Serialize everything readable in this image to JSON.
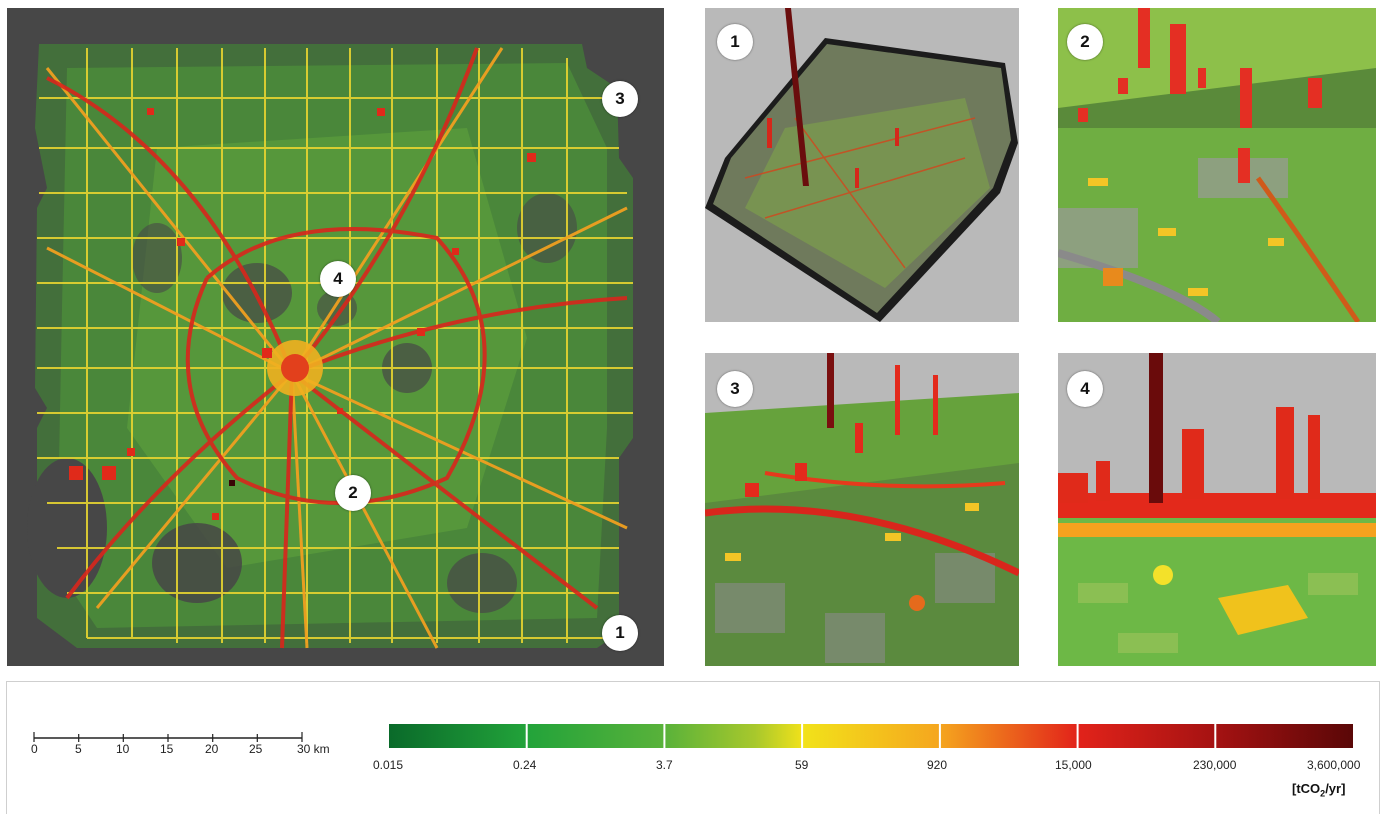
{
  "main_map": {
    "background": "#474747",
    "markers": [
      {
        "label": "3"
      },
      {
        "label": "4"
      },
      {
        "label": "2"
      },
      {
        "label": "1"
      }
    ]
  },
  "views": [
    {
      "marker": "1",
      "sky": "#b9b9b9"
    },
    {
      "marker": "2",
      "sky": "#c4c4c4"
    },
    {
      "marker": "3",
      "sky": "#b9b9b9"
    },
    {
      "marker": "4",
      "sky": "#b9b9b9"
    }
  ],
  "scale_bar": {
    "ticks": [
      "0",
      "5",
      "10",
      "15",
      "20",
      "25",
      "30 km"
    ]
  },
  "colorbar": {
    "labels": [
      "0.015",
      "0.24",
      "3.7",
      "59",
      "920",
      "15,000",
      "230,000",
      "3,600,000"
    ],
    "unit_prefix": "[tCO",
    "unit_sub": "2",
    "unit_suffix": "/yr]",
    "colors": [
      "#0a6a2a",
      "#22a33a",
      "#6cbf3a",
      "#f2e21a",
      "#f5a61e",
      "#e2231a",
      "#a51212",
      "#5a0707"
    ]
  }
}
